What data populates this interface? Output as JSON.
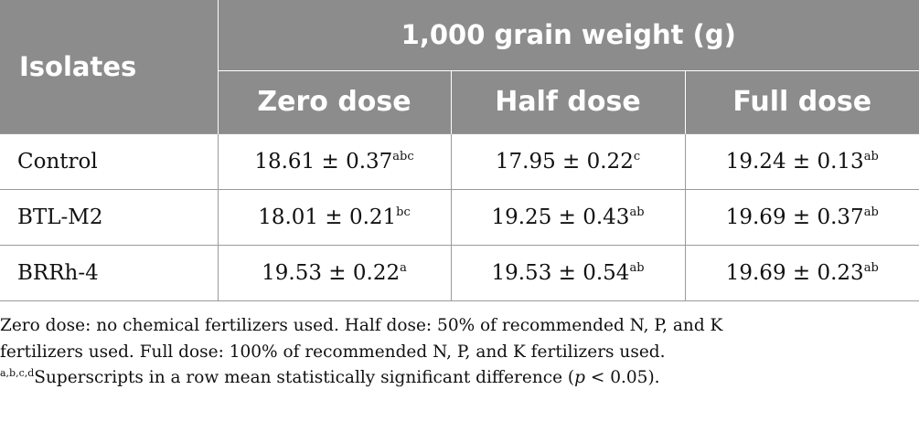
{
  "table": {
    "header": {
      "isolates": "Isolates",
      "group": "1,000 grain weight (g)",
      "doses": [
        "Zero dose",
        "Half dose",
        "Full dose"
      ]
    },
    "rows": [
      {
        "name": "Control",
        "cells": [
          {
            "value": "18.61 ± 0.37",
            "sup": "abc"
          },
          {
            "value": "17.95 ± 0.22",
            "sup": "c"
          },
          {
            "value": "19.24 ± 0.13",
            "sup": "ab"
          }
        ]
      },
      {
        "name": "BTL-M2",
        "cells": [
          {
            "value": "18.01 ± 0.21",
            "sup": "bc"
          },
          {
            "value": "19.25 ± 0.43",
            "sup": "ab"
          },
          {
            "value": "19.69 ± 0.37",
            "sup": "ab"
          }
        ]
      },
      {
        "name": "BRRh-4",
        "cells": [
          {
            "value": "19.53 ± 0.22",
            "sup": "a"
          },
          {
            "value": "19.53 ± 0.54",
            "sup": "ab"
          },
          {
            "value": "19.69 ± 0.23",
            "sup": "ab"
          }
        ]
      }
    ]
  },
  "notes": {
    "line1": "Zero dose: no chemical fertilizers used. Half dose: 50% of recommended N, P, and K",
    "line2": "fertilizers used. Full dose: 100% of recommended N, P, and K fertilizers used.",
    "line3_sup": "a,b,c,d",
    "line3_text": "Superscripts in a row mean statistically significant difference (",
    "line3_p": "p",
    "line3_tail": " < 0.05)."
  },
  "colors": {
    "header_bg": "#8c8c8c",
    "header_text": "#ffffff",
    "grid": "#9a9a9a"
  }
}
